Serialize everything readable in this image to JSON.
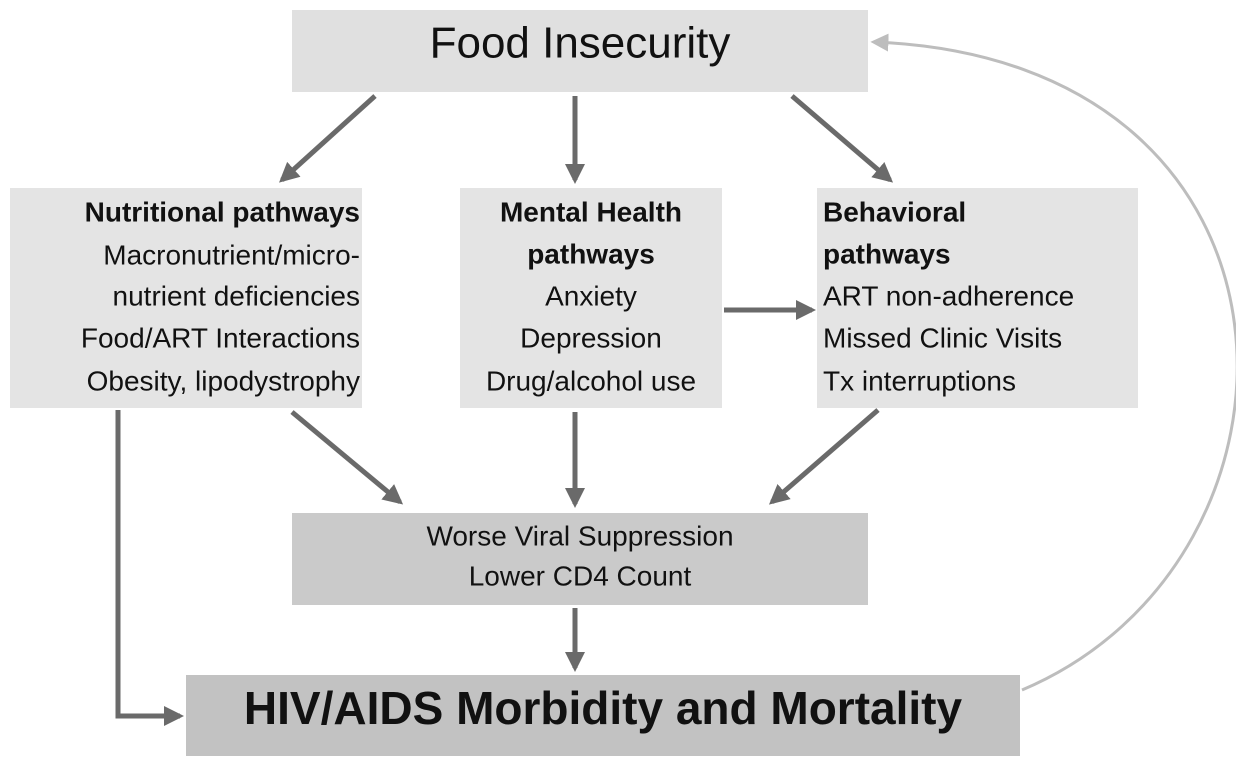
{
  "top": {
    "label": "Food Insecurity"
  },
  "nodes": [
    {
      "title": "Nutritional pathways",
      "lines": [
        "Macronutrient/micro-",
        "nutrient deficiencies",
        "Food/ART Interactions",
        "Obesity, lipodystrophy"
      ]
    },
    {
      "title": [
        "Mental Health",
        "pathways"
      ],
      "lines": [
        "Anxiety",
        "Depression",
        "Drug/alcohol use"
      ]
    },
    {
      "title": [
        "Behavioral",
        "pathways"
      ],
      "lines": [
        "ART non-adherence",
        "Missed Clinic Visits",
        "Tx interruptions"
      ]
    }
  ],
  "outcome": {
    "lines": [
      "Worse Viral Suppression",
      "Lower CD4 Count"
    ]
  },
  "bottom": {
    "label": "HIV/AIDS Morbidity and Mortality"
  }
}
